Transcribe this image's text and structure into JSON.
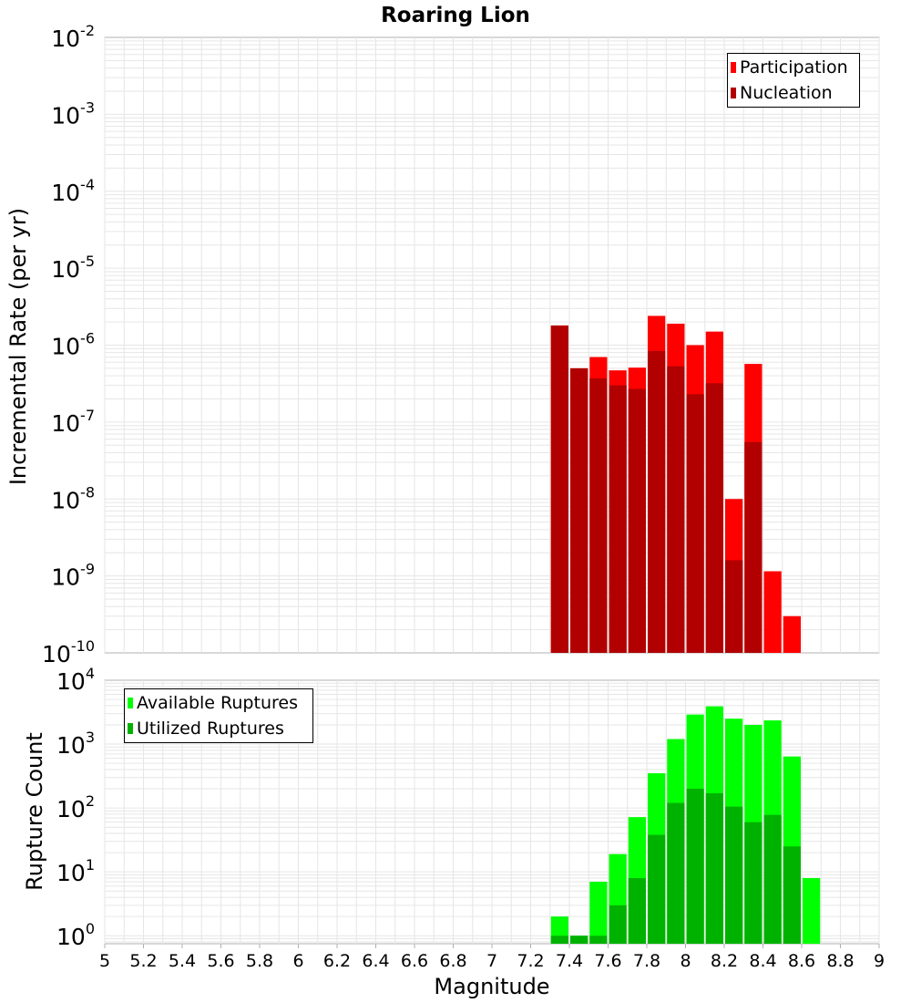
{
  "colors": {
    "participation": "#ff0000",
    "nucleation": "#b20000",
    "available": "#00ff00",
    "utilized": "#00b200",
    "grid": "#e6e6e6",
    "axis": "#b0b0b0"
  },
  "chart_data": [
    {
      "type": "bar",
      "title": "Roaring Lion",
      "xlabel": "",
      "ylabel": "Incremental Rate (per yr)",
      "yscale": "log",
      "ylim_exp": [
        -10,
        -2
      ],
      "y_tick_exponents": [
        "-10",
        "-9",
        "-8",
        "-7",
        "-6",
        "-5",
        "-4",
        "-3",
        "-2"
      ],
      "y_tick_base": "10",
      "xlim": [
        5,
        9
      ],
      "legend_position": "top-right",
      "series": [
        {
          "name": "Participation",
          "color": "#ff0000",
          "x": [
            7.35,
            7.45,
            7.55,
            7.65,
            7.75,
            7.85,
            7.95,
            8.05,
            8.15,
            8.25,
            8.35,
            8.45,
            8.55
          ],
          "values": [
            1.8e-06,
            5e-07,
            7e-07,
            4.7e-07,
            5.1e-07,
            2.4e-06,
            1.9e-06,
            1e-06,
            1.5e-06,
            1e-08,
            5.7e-07,
            1.15e-09,
            3e-10
          ]
        },
        {
          "name": "Nucleation",
          "color": "#b20000",
          "x": [
            7.35,
            7.45,
            7.55,
            7.65,
            7.75,
            7.85,
            7.95,
            8.05,
            8.15,
            8.25,
            8.35
          ],
          "values": [
            1.8e-06,
            5e-07,
            3.7e-07,
            3e-07,
            2.7e-07,
            8.4e-07,
            5.3e-07,
            2.3e-07,
            3.2e-07,
            1.6e-09,
            5.5e-08
          ]
        }
      ]
    },
    {
      "type": "bar",
      "title": "",
      "xlabel": "Magnitude",
      "ylabel": "Rupture Count",
      "yscale": "log",
      "ylim": [
        0.75,
        10000
      ],
      "y_tick_exponents": [
        "0",
        "1",
        "2",
        "3",
        "4"
      ],
      "y_tick_base": "10",
      "xlim": [
        5,
        9
      ],
      "x_tick_labels": [
        "5",
        "5.2",
        "5.4",
        "5.6",
        "5.8",
        "6",
        "6.2",
        "6.4",
        "6.6",
        "6.8",
        "7",
        "7.2",
        "7.4",
        "7.6",
        "7.8",
        "8",
        "8.2",
        "8.4",
        "8.6",
        "8.8",
        "9"
      ],
      "legend_position": "top-left",
      "series": [
        {
          "name": "Available Ruptures",
          "color": "#00ff00",
          "x": [
            7.35,
            7.45,
            7.55,
            7.65,
            7.75,
            7.85,
            7.95,
            8.05,
            8.15,
            8.25,
            8.35,
            8.45,
            8.55,
            8.65
          ],
          "values": [
            2,
            1,
            7,
            19,
            72,
            350,
            1200,
            2900,
            3900,
            2500,
            2000,
            2350,
            640,
            8
          ]
        },
        {
          "name": "Utilized Ruptures",
          "color": "#00b200",
          "x": [
            7.35,
            7.45,
            7.55,
            7.65,
            7.75,
            7.85,
            7.95,
            8.05,
            8.15,
            8.25,
            8.35,
            8.45,
            8.55
          ],
          "values": [
            1,
            1,
            1,
            3,
            8,
            38,
            120,
            200,
            170,
            105,
            60,
            78,
            25
          ]
        }
      ]
    }
  ]
}
